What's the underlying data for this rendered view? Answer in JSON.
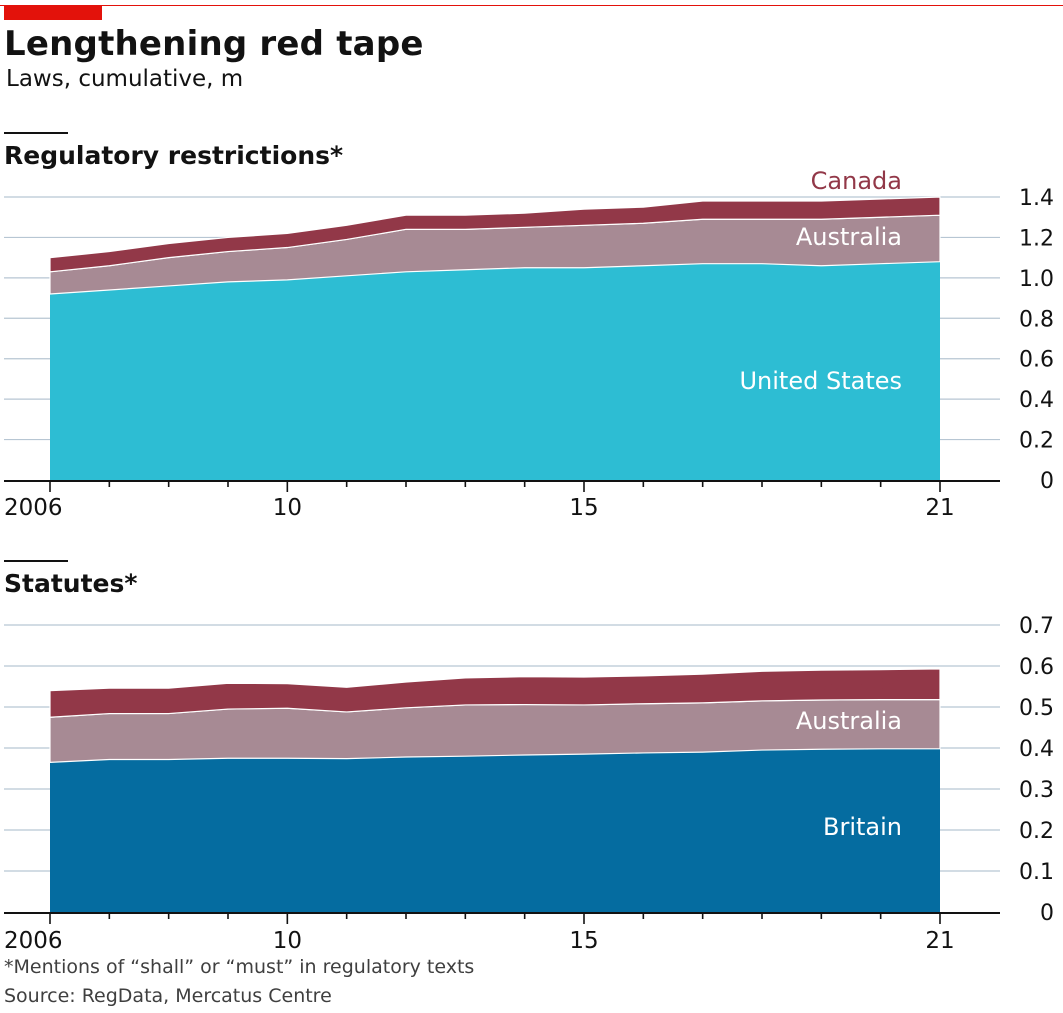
{
  "title": "Lengthening red tape",
  "subtitle": "Laws, cumulative, m",
  "footnote": "*Mentions of “shall” or “must” in regulatory texts",
  "source": "Source: RegData, Mercatus Centre",
  "colors": {
    "brand_red": "#e3120b",
    "canada": "#923848",
    "australia": "#a78a94",
    "united_states": "#2dbdd3",
    "britain": "#056ca0",
    "gridline": "#b7c6d3",
    "axis": "#121212"
  },
  "chart_data": [
    {
      "type": "area",
      "stacked": true,
      "title": "Regulatory restrictions*",
      "xlabel": "",
      "ylabel": "",
      "x": [
        2006,
        2007,
        2008,
        2009,
        2010,
        2011,
        2012,
        2013,
        2014,
        2015,
        2016,
        2017,
        2018,
        2019,
        2020,
        2021
      ],
      "x_ticks": [
        2006,
        2010,
        2015,
        2021
      ],
      "x_tick_labels": [
        "2006",
        "10",
        "15",
        "21"
      ],
      "ylim": [
        0,
        1.4
      ],
      "y_ticks": [
        0,
        0.2,
        0.4,
        0.6,
        0.8,
        1.0,
        1.2,
        1.4
      ],
      "y_tick_labels": [
        "0",
        "0.2",
        "0.4",
        "0.6",
        "0.8",
        "1.0",
        "1.2",
        "1.4"
      ],
      "y_axis_side": "right",
      "grid": true,
      "series": [
        {
          "name": "United States",
          "color_key": "united_states",
          "label_color": "#ffffff",
          "values": [
            0.92,
            0.94,
            0.96,
            0.98,
            0.99,
            1.01,
            1.03,
            1.04,
            1.05,
            1.05,
            1.06,
            1.07,
            1.07,
            1.06,
            1.07,
            1.08
          ]
        },
        {
          "name": "Australia",
          "color_key": "australia",
          "label_color": "#ffffff",
          "values": [
            0.11,
            0.12,
            0.14,
            0.15,
            0.16,
            0.18,
            0.21,
            0.2,
            0.2,
            0.21,
            0.21,
            0.22,
            0.22,
            0.23,
            0.23,
            0.23
          ]
        },
        {
          "name": "Canada",
          "color_key": "canada",
          "label_color": "#923848",
          "values": [
            0.07,
            0.07,
            0.07,
            0.07,
            0.07,
            0.07,
            0.07,
            0.07,
            0.07,
            0.08,
            0.08,
            0.09,
            0.09,
            0.09,
            0.09,
            0.09
          ]
        }
      ]
    },
    {
      "type": "area",
      "stacked": true,
      "title": "Statutes*",
      "xlabel": "",
      "ylabel": "",
      "x": [
        2006,
        2007,
        2008,
        2009,
        2010,
        2011,
        2012,
        2013,
        2014,
        2015,
        2016,
        2017,
        2018,
        2019,
        2020,
        2021
      ],
      "x_ticks": [
        2006,
        2010,
        2015,
        2021
      ],
      "x_tick_labels": [
        "2006",
        "10",
        "15",
        "21"
      ],
      "ylim": [
        0,
        0.7
      ],
      "y_ticks": [
        0,
        0.1,
        0.2,
        0.3,
        0.4,
        0.5,
        0.6,
        0.7
      ],
      "y_tick_labels": [
        "0",
        "0.1",
        "0.2",
        "0.3",
        "0.4",
        "0.5",
        "0.6",
        "0.7"
      ],
      "y_axis_side": "right",
      "grid": true,
      "series": [
        {
          "name": "Britain",
          "color_key": "britain",
          "label_color": "#ffffff",
          "values": [
            0.365,
            0.372,
            0.372,
            0.375,
            0.375,
            0.374,
            0.378,
            0.38,
            0.383,
            0.385,
            0.388,
            0.39,
            0.395,
            0.397,
            0.398,
            0.398
          ]
        },
        {
          "name": "Australia",
          "color_key": "australia",
          "label_color": "#ffffff",
          "values": [
            0.11,
            0.112,
            0.112,
            0.12,
            0.122,
            0.114,
            0.12,
            0.125,
            0.123,
            0.12,
            0.12,
            0.12,
            0.12,
            0.12,
            0.12,
            0.12
          ]
        },
        {
          "name": "Canada",
          "color_key": "canada",
          "label_color": "#923848",
          "values": [
            0.065,
            0.062,
            0.062,
            0.063,
            0.06,
            0.06,
            0.063,
            0.066,
            0.068,
            0.068,
            0.068,
            0.07,
            0.072,
            0.073,
            0.073,
            0.075
          ]
        }
      ]
    }
  ]
}
